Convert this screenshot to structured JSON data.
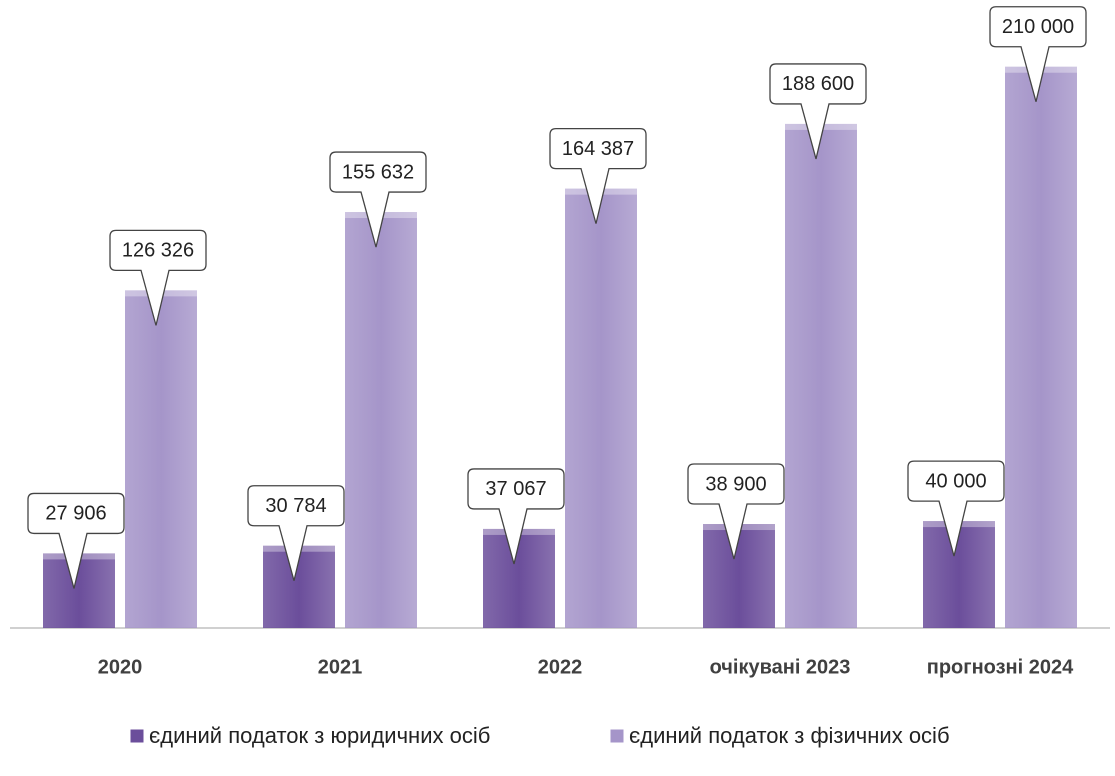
{
  "chart_data": {
    "type": "bar",
    "categories": [
      "2020",
      "2021",
      "2022",
      "очікувані 2023",
      "прогнозні 2024"
    ],
    "series": [
      {
        "name": "єдиний податок з юридичних осіб",
        "color": "#6b4e9b",
        "values": [
          27906,
          30784,
          37067,
          38900,
          40000
        ],
        "value_labels": [
          "27 906",
          "30 784",
          "37 067",
          "38 900",
          "40 000"
        ]
      },
      {
        "name": "єдиний податок з фізичних осіб",
        "color": "#a595c9",
        "values": [
          126326,
          155632,
          164387,
          188600,
          210000
        ],
        "value_labels": [
          "126 326",
          "155 632",
          "164 387",
          "188 600",
          "210 000"
        ]
      }
    ],
    "ylim": [
      0,
      220000
    ],
    "legend": "bottom"
  }
}
